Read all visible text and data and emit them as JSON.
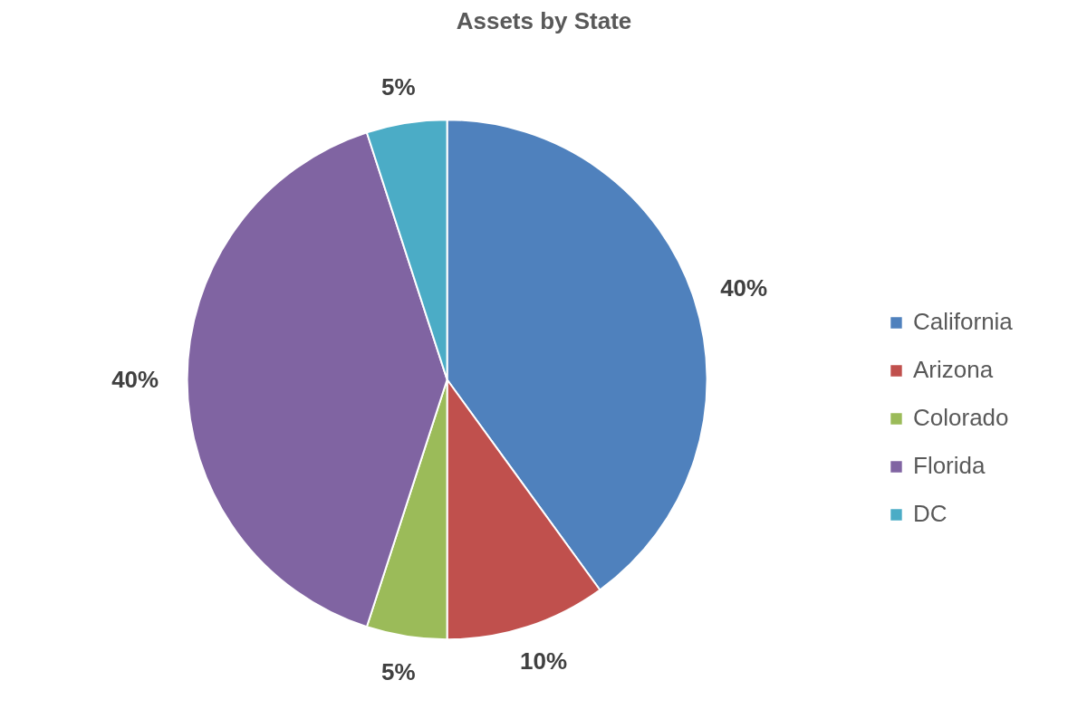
{
  "chart_data": {
    "type": "pie",
    "title": "Assets by State",
    "categories": [
      "California",
      "Arizona",
      "Colorado",
      "Florida",
      "DC"
    ],
    "values": [
      40,
      10,
      5,
      40,
      5
    ],
    "colors": [
      "#4f81bd",
      "#c0504d",
      "#9bbb59",
      "#8064a2",
      "#4bacc6"
    ],
    "value_labels": [
      "40%",
      "10%",
      "5%",
      "40%",
      "5%"
    ],
    "legend": "right"
  }
}
